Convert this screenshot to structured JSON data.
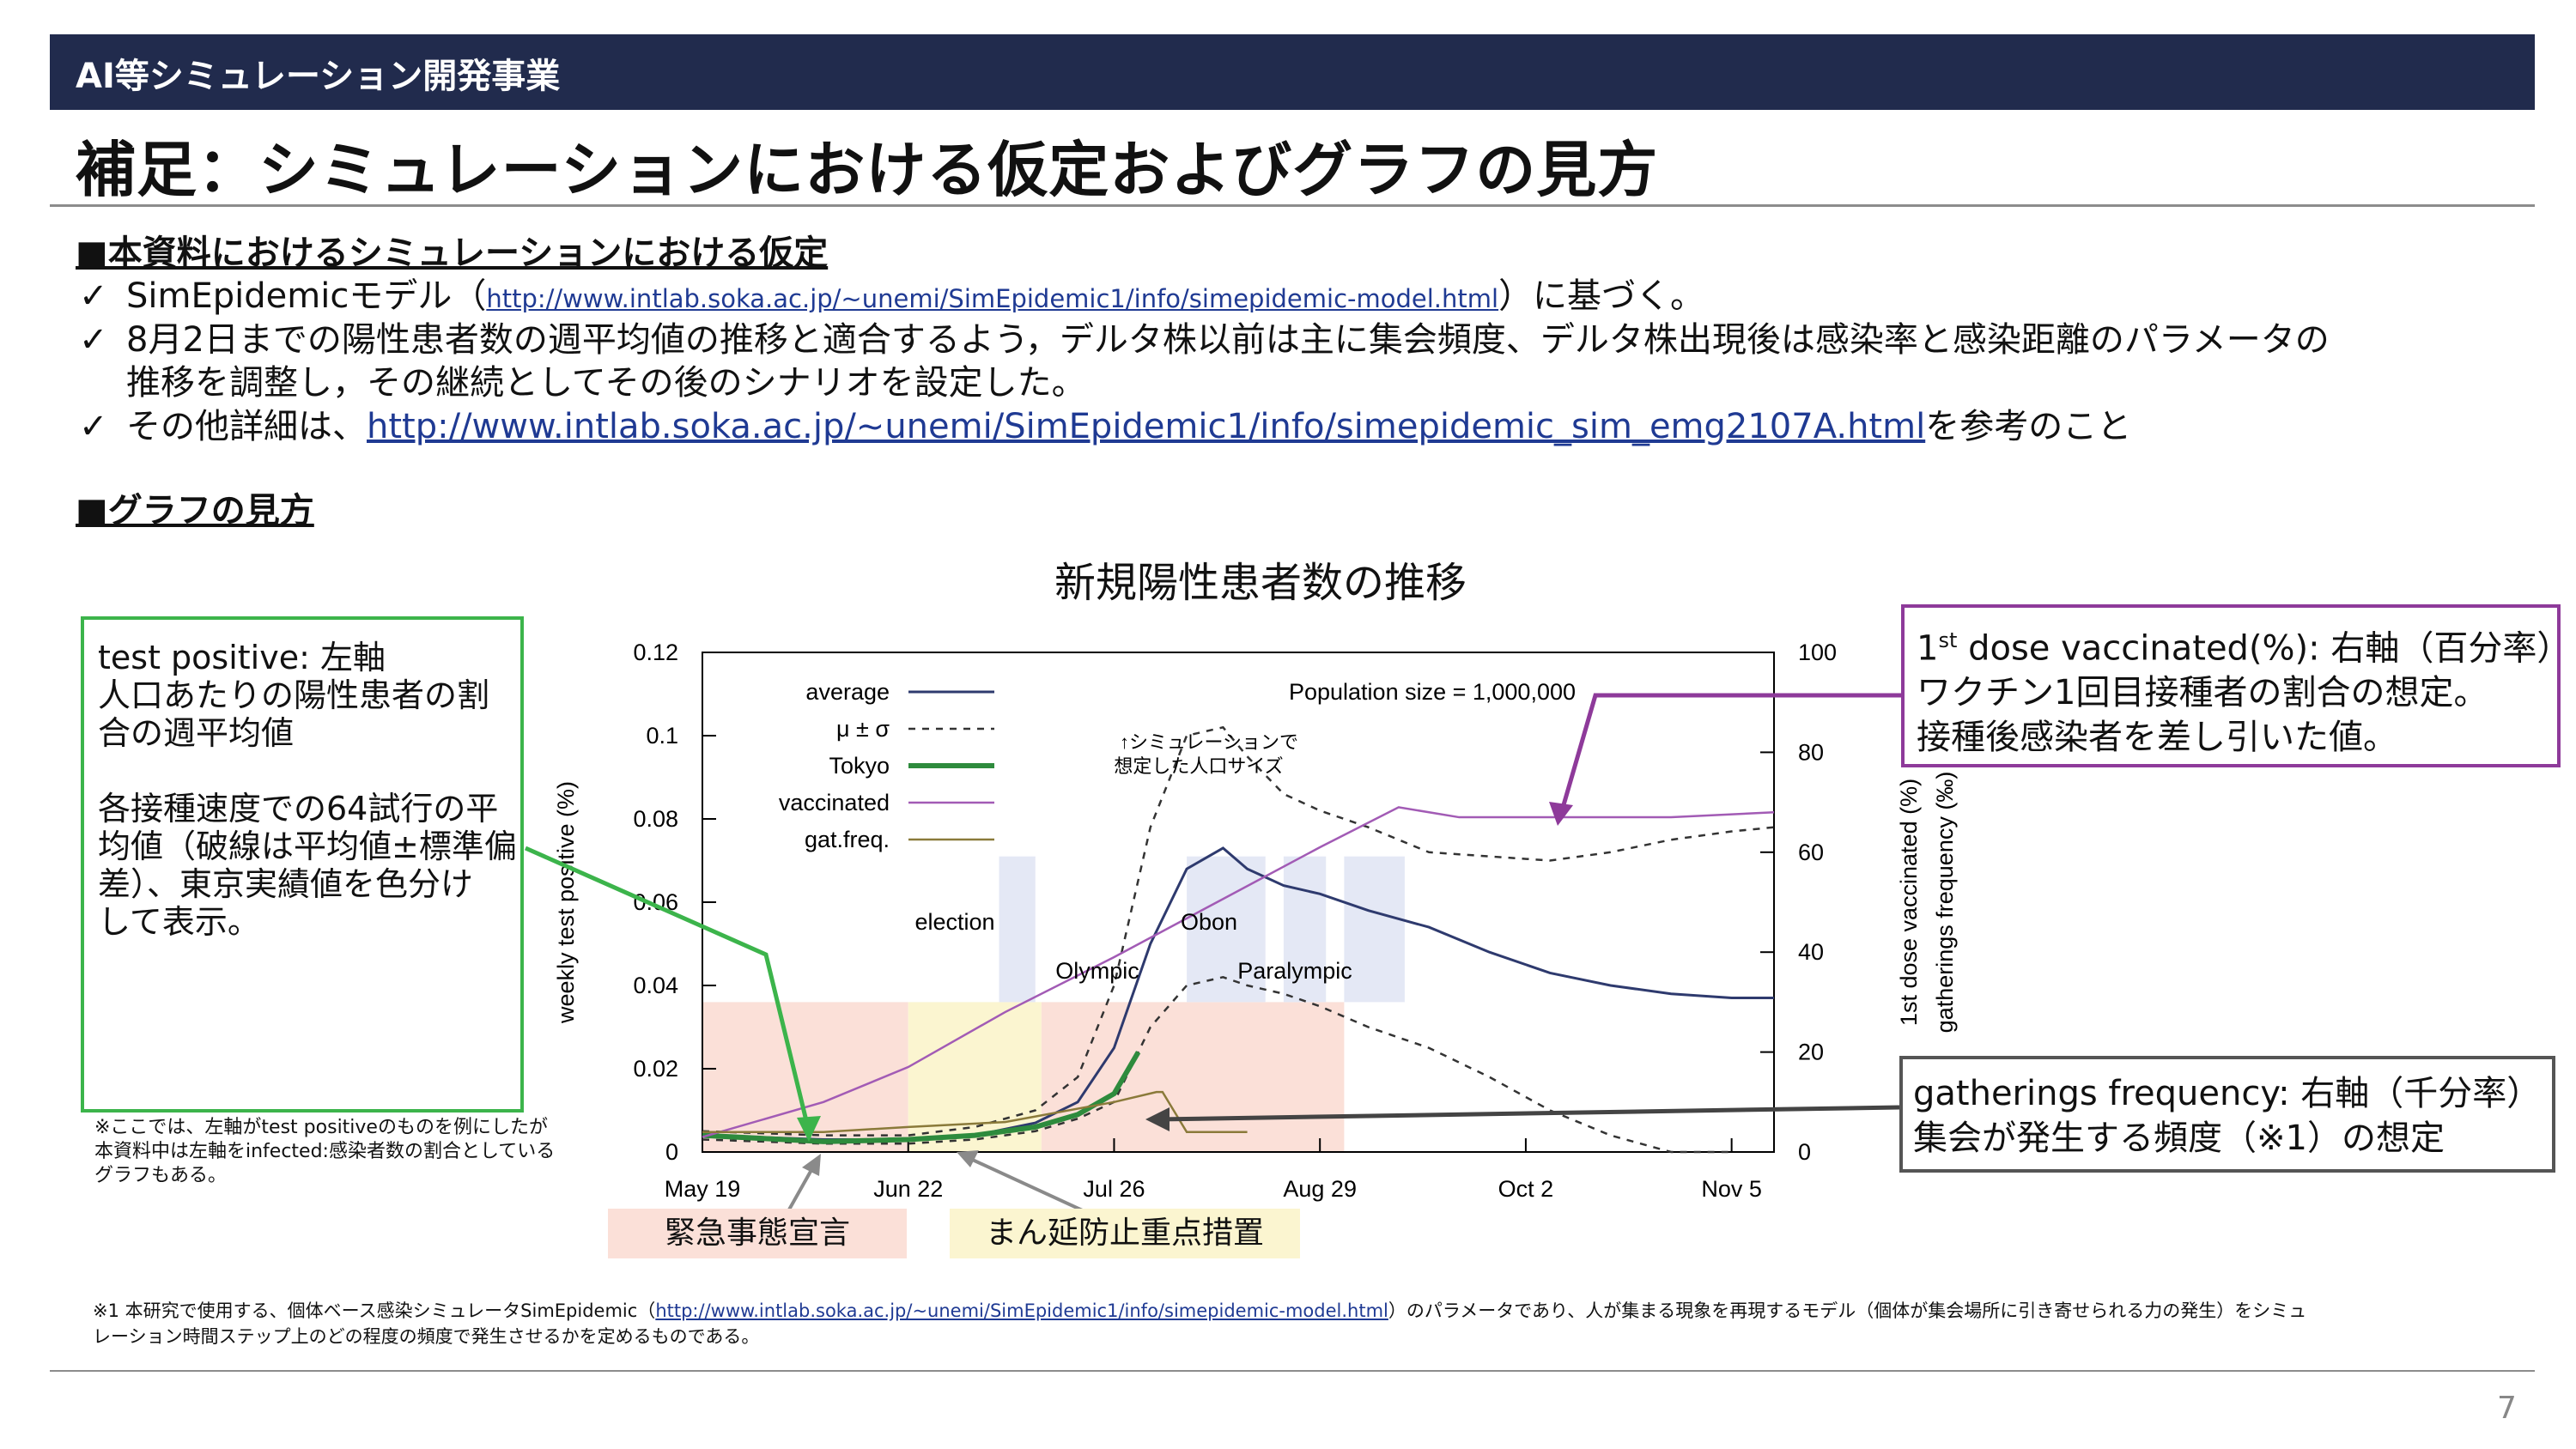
{
  "header": {
    "text": "AI等シミュレーション開発事業"
  },
  "title": "補足：シミュレーションにおける仮定およびグラフの見方",
  "section1": {
    "heading": "■本資料におけるシミュレーションにおける仮定",
    "bullets": [
      {
        "pre": "SimEpidemicモデル（",
        "link": "http://www.intlab.soka.ac.jp/~unemi/SimEpidemic1/info/simepidemic-model.html",
        "post": "）に基づく。"
      },
      {
        "line1": "8月2日までの陽性患者数の週平均値の推移と適合するよう，デルタ株以前は主に集会頻度、デルタ株出現後は感染率と感染距離のパラメータの",
        "line2": "推移を調整し，その継続としてその後のシナリオを設定した。"
      },
      {
        "pre": "その他詳細は、",
        "link": "http://www.intlab.soka.ac.jp/~unemi/SimEpidemic1/info/simepidemic_sim_emg2107A.html",
        "post": "を参考のこと"
      }
    ],
    "check": "✓"
  },
  "section2": {
    "heading": "■グラフの見方"
  },
  "left_box": {
    "text": "test positive: 左軸\n人口あたりの陽性患者の割\n合の週平均値\n\n各接種速度での64試行の平\n均値（破線は平均値±標準偏\n差）、東京実績値を色分け\nして表示。",
    "color": "#3cb44b"
  },
  "left_note": "※ここでは、左軸がtest positiveのものを例にしたが\n本資料中は左軸をinfected:感染者数の割合としている\nグラフもある。",
  "right_box1": {
    "line1a": "1",
    "sup": "st",
    "line1b": " dose vaccinated(%): 右軸（百分率）",
    "line2": "ワクチン1回目接種者の割合の想定。",
    "line3": "接種後感染者を差し引いた値。",
    "color": "#8e3a9a"
  },
  "right_box2": {
    "line1": "gatherings frequency: 右軸（千分率）",
    "line2": "集会が発生する頻度（※1）の想定",
    "color": "#555555"
  },
  "labels": {
    "emergency": "緊急事態宣言",
    "semi": "まん延防止重点措置"
  },
  "chart_data": {
    "type": "line",
    "title": "新規陽性患者数の推移",
    "ylabel": "weekly test positive (%)",
    "y2label1": "1st dose vaccinated (%)",
    "y2label2": "gatherings frequency (‰)",
    "ylim": [
      0,
      0.12
    ],
    "y2lim": [
      0,
      100
    ],
    "x_ticks": [
      "May 19",
      "Jun 22",
      "Jul 26",
      "Aug 29",
      "Oct 2",
      "Nov 5"
    ],
    "y_ticks": [
      "0",
      "0.02",
      "0.04",
      "0.06",
      "0.08",
      "0.1",
      "0.12"
    ],
    "y2_ticks": [
      "0",
      "20",
      "40",
      "60",
      "80",
      "100"
    ],
    "legend": [
      "average",
      "μ ± σ",
      "Tokyo",
      "vaccinated",
      "gat.freq."
    ],
    "annotations": {
      "population": "Population size = 1,000,000",
      "pop_note1": "↑シミュレーションで",
      "pop_note2": "想定した人口サイズ",
      "election": "election",
      "olympic": "Olympic",
      "obon": "Obon",
      "paralympic": "Paralympic"
    },
    "x_days": [
      0,
      34,
      68,
      102,
      136,
      170
    ],
    "series": [
      {
        "name": "average",
        "color": "#2e3a6e",
        "x": [
          0,
          20,
          34,
          45,
          55,
          62,
          68,
          74,
          80,
          86,
          90,
          96,
          102,
          110,
          120,
          130,
          140,
          150,
          160,
          170,
          177
        ],
        "y": [
          0.004,
          0.003,
          0.003,
          0.004,
          0.007,
          0.012,
          0.025,
          0.05,
          0.068,
          0.073,
          0.068,
          0.064,
          0.062,
          0.058,
          0.054,
          0.048,
          0.043,
          0.04,
          0.038,
          0.037,
          0.037
        ]
      },
      {
        "name": "μ + σ",
        "color": "#333333",
        "dashed": true,
        "x": [
          0,
          20,
          34,
          45,
          55,
          62,
          68,
          74,
          80,
          86,
          90,
          96,
          102,
          110,
          120,
          130,
          140,
          150,
          160,
          170,
          177
        ],
        "y": [
          0.005,
          0.004,
          0.004,
          0.006,
          0.01,
          0.018,
          0.04,
          0.078,
          0.1,
          0.102,
          0.095,
          0.086,
          0.082,
          0.078,
          0.072,
          0.071,
          0.07,
          0.072,
          0.075,
          0.077,
          0.078
        ]
      },
      {
        "name": "μ − σ",
        "color": "#333333",
        "dashed": true,
        "x": [
          0,
          20,
          34,
          45,
          55,
          62,
          68,
          74,
          80,
          86,
          90,
          96,
          102,
          110,
          120,
          130,
          140,
          150,
          160,
          170
        ],
        "y": [
          0.003,
          0.002,
          0.002,
          0.003,
          0.005,
          0.008,
          0.012,
          0.03,
          0.04,
          0.042,
          0.04,
          0.038,
          0.035,
          0.03,
          0.025,
          0.018,
          0.01,
          0.004,
          0.0,
          0.0
        ]
      },
      {
        "name": "Tokyo",
        "color": "#2e8b3d",
        "x": [
          0,
          20,
          34,
          45,
          55,
          62,
          68,
          72
        ],
        "y": [
          0.004,
          0.0025,
          0.003,
          0.004,
          0.006,
          0.009,
          0.014,
          0.024
        ]
      },
      {
        "name": "vaccinated",
        "color": "#a25bb5",
        "axis": "right",
        "x": [
          0,
          20,
          34,
          50,
          68,
          85,
          102,
          115,
          125,
          140,
          160,
          177
        ],
        "y": [
          3,
          10,
          17,
          28,
          39,
          50,
          61,
          69,
          67,
          67,
          67,
          68
        ]
      },
      {
        "name": "gat.freq.",
        "color": "#8a7a3a",
        "axis": "right",
        "x": [
          0,
          20,
          34,
          50,
          68,
          75,
          76,
          80,
          90
        ],
        "y": [
          4,
          4,
          5,
          6,
          10,
          12,
          12,
          4,
          4
        ]
      }
    ],
    "periods": [
      {
        "label": "緊急事態宣言",
        "from": 0,
        "to": 34,
        "color": "#fbe0d8"
      },
      {
        "label": "まん延防止重点措置",
        "from": 34,
        "to": 56,
        "color": "#fbf5d0"
      },
      {
        "label": "緊急事態宣言",
        "from": 56,
        "to": 106,
        "color": "#fbe0d8"
      }
    ]
  },
  "footnote": {
    "pre": "※1 本研究で使用する、個体ベース感染シミュレータSimEpidemic（",
    "link": "http://www.intlab.soka.ac.jp/~unemi/SimEpidemic1/info/simepidemic-model.html",
    "post": "）のパラメータであり、人が集まる現象を再現するモデル（個体が集会場所に引き寄せられる力の発生）をシミュ",
    "line2": "レーション時間ステップ上のどの程度の頻度で発生させるかを定めるものである。"
  },
  "page_number": "7"
}
